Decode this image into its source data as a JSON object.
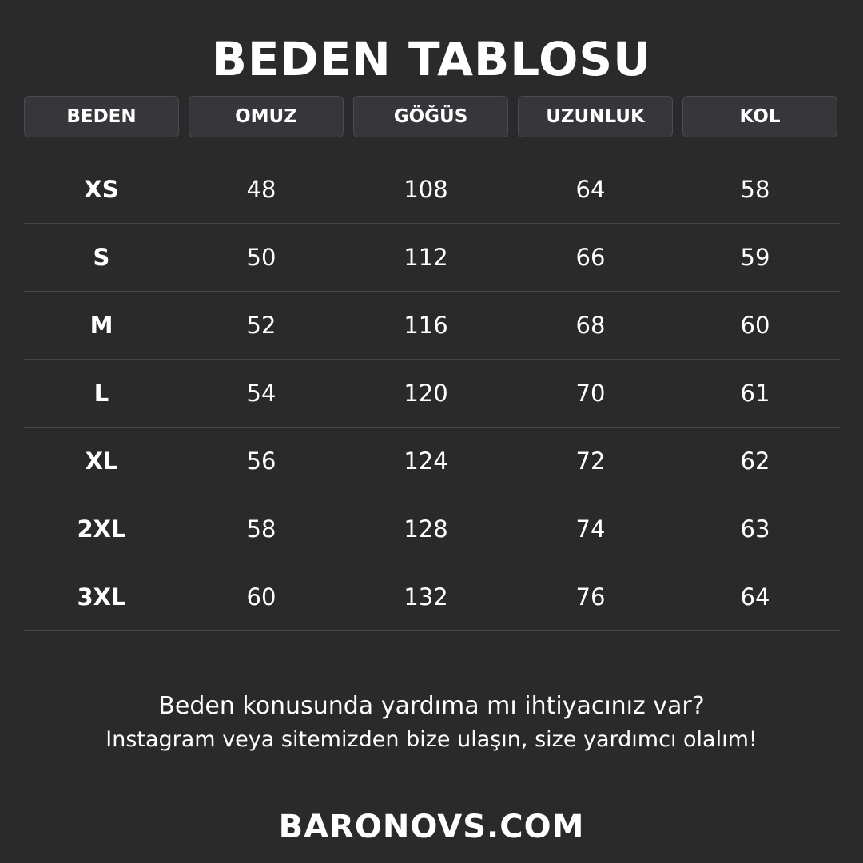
{
  "title": "BEDEN TABLOSU",
  "columns": [
    "BEDEN",
    "OMUZ",
    "GÖĞÜS",
    "UZUNLUK",
    "KOL"
  ],
  "rows": [
    [
      "XS",
      "48",
      "108",
      "64",
      "58"
    ],
    [
      "S",
      "50",
      "112",
      "66",
      "59"
    ],
    [
      "M",
      "52",
      "116",
      "68",
      "60"
    ],
    [
      "L",
      "54",
      "120",
      "70",
      "61"
    ],
    [
      "XL",
      "56",
      "124",
      "72",
      "62"
    ],
    [
      "2XL",
      "58",
      "128",
      "74",
      "63"
    ],
    [
      "3XL",
      "60",
      "132",
      "76",
      "64"
    ]
  ],
  "help": {
    "line1": "Beden konusunda yardıma mı ihtiyacınız var?",
    "line2": "Instagram veya sitemizden bize ulaşın, size yardımcı olalım!"
  },
  "website": "BARONOVS.COM"
}
